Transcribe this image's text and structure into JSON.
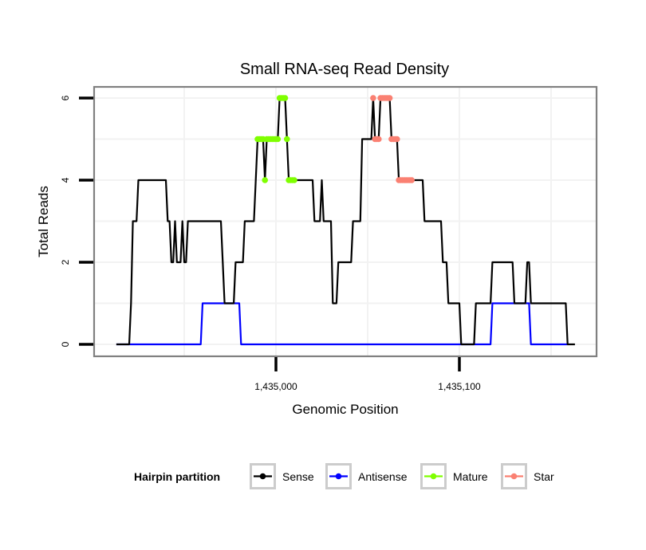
{
  "chart_data": {
    "type": "line",
    "title": "Small RNA-seq Read Density",
    "xlabel": "Genomic Position",
    "ylabel": "Total Reads",
    "xlim": [
      1434913,
      1435163
    ],
    "ylim": [
      0,
      6
    ],
    "x_ticks": [
      1435000,
      1435100
    ],
    "x_tick_labels": [
      "1,435,000",
      "1,435,100"
    ],
    "x_minor_grid": [
      1434950,
      1435050,
      1435150
    ],
    "y_ticks": [
      0,
      2,
      4,
      6
    ],
    "y_tick_labels": [
      "0",
      "2",
      "4",
      "6"
    ],
    "y_minor_grid": [
      1,
      3,
      5
    ],
    "grid": true,
    "legend": {
      "title": "Hairpin partition",
      "position": "bottom",
      "entries": [
        {
          "name": "Sense",
          "color": "#000000"
        },
        {
          "name": "Antisense",
          "color": "#0000ff"
        },
        {
          "name": "Mature",
          "color": "#7fff00"
        },
        {
          "name": "Star",
          "color": "#fa8072"
        }
      ]
    },
    "series": [
      {
        "name": "Sense",
        "color": "#000000",
        "style": "line",
        "runs": [
          [
            1434913,
            1434920,
            0
          ],
          [
            1434921,
            1434921,
            1
          ],
          [
            1434922,
            1434924,
            3
          ],
          [
            1434925,
            1434940,
            4
          ],
          [
            1434941,
            1434942,
            3
          ],
          [
            1434943,
            1434944,
            2
          ],
          [
            1434945,
            1434945,
            3
          ],
          [
            1434946,
            1434948,
            2
          ],
          [
            1434949,
            1434949,
            3
          ],
          [
            1434950,
            1434951,
            2
          ],
          [
            1434952,
            1434970,
            3
          ],
          [
            1434971,
            1434971,
            2
          ],
          [
            1434972,
            1434977,
            1
          ],
          [
            1434978,
            1434982,
            2
          ],
          [
            1434983,
            1434988,
            3
          ],
          [
            1434989,
            1434989,
            4
          ],
          [
            1434990,
            1434993,
            5
          ],
          [
            1434994,
            1434994,
            4
          ],
          [
            1434995,
            1435001,
            5
          ],
          [
            1435002,
            1435005,
            6
          ],
          [
            1435006,
            1435006,
            5
          ],
          [
            1435007,
            1435020,
            4
          ],
          [
            1435021,
            1435024,
            3
          ],
          [
            1435025,
            1435025,
            4
          ],
          [
            1435026,
            1435030,
            3
          ],
          [
            1435031,
            1435033,
            1
          ],
          [
            1435034,
            1435041,
            2
          ],
          [
            1435042,
            1435046,
            3
          ],
          [
            1435047,
            1435052,
            5
          ],
          [
            1435053,
            1435053,
            6
          ],
          [
            1435054,
            1435056,
            5
          ],
          [
            1435057,
            1435062,
            6
          ],
          [
            1435063,
            1435066,
            5
          ],
          [
            1435067,
            1435080,
            4
          ],
          [
            1435081,
            1435090,
            3
          ],
          [
            1435091,
            1435093,
            2
          ],
          [
            1435094,
            1435100,
            1
          ],
          [
            1435101,
            1435108,
            0
          ],
          [
            1435109,
            1435117,
            1
          ],
          [
            1435118,
            1435129,
            2
          ],
          [
            1435130,
            1435136,
            1
          ],
          [
            1435137,
            1435138,
            2
          ],
          [
            1435139,
            1435158,
            1
          ],
          [
            1435159,
            1435163,
            0
          ]
        ]
      },
      {
        "name": "Antisense",
        "color": "#0000ff",
        "style": "line",
        "runs": [
          [
            1434913,
            1434959,
            0
          ],
          [
            1434960,
            1434980,
            1
          ],
          [
            1434981,
            1435117,
            0
          ],
          [
            1435118,
            1435138,
            1
          ],
          [
            1435139,
            1435159,
            0
          ]
        ]
      },
      {
        "name": "Mature",
        "color": "#7fff00",
        "style": "points",
        "runs": [
          [
            1434990,
            1434993,
            5
          ],
          [
            1434994,
            1434994,
            4
          ],
          [
            1434995,
            1435001,
            5
          ],
          [
            1435002,
            1435005,
            6
          ],
          [
            1435006,
            1435006,
            5
          ],
          [
            1435007,
            1435010,
            4
          ]
        ]
      },
      {
        "name": "Star",
        "color": "#fa8072",
        "style": "points",
        "runs": [
          [
            1435053,
            1435053,
            6
          ],
          [
            1435054,
            1435056,
            5
          ],
          [
            1435057,
            1435062,
            6
          ],
          [
            1435063,
            1435066,
            5
          ],
          [
            1435067,
            1435074,
            4
          ]
        ]
      }
    ]
  }
}
